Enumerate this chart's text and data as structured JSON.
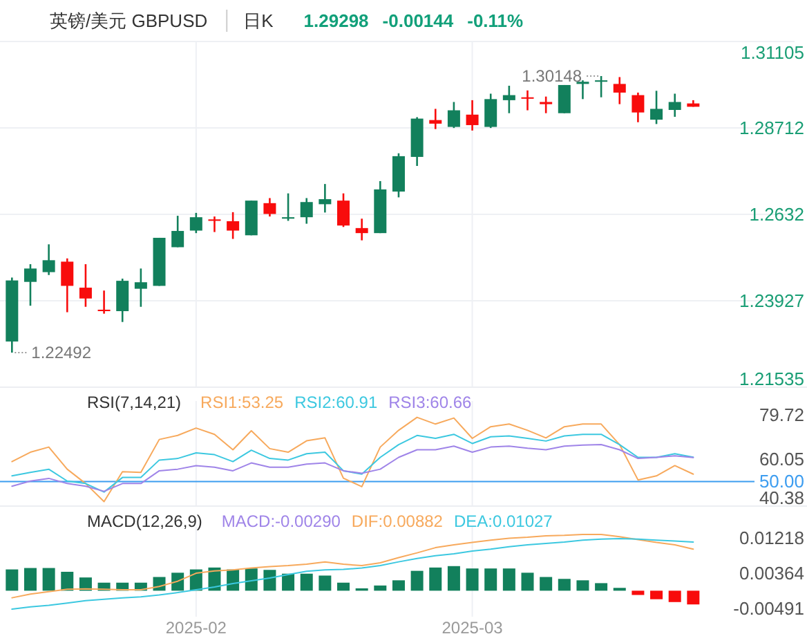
{
  "chart_data": [
    {
      "type": "candlestick",
      "title": "英镑/美元 GBPUSD",
      "subtitle": "日K",
      "annotations": [
        "1.29298",
        "-0.00144",
        "-0.11%",
        "1.22492",
        "1.30148"
      ],
      "categories": [
        null,
        null,
        null,
        null,
        null,
        null,
        null,
        null,
        null,
        null,
        "2025-02",
        null,
        null,
        null,
        null,
        null,
        null,
        null,
        null,
        null,
        null,
        null,
        null,
        null,
        null,
        "2025-03",
        null,
        null,
        null,
        null,
        null,
        null,
        null,
        null,
        null,
        null,
        null,
        null
      ],
      "ohlc": [
        [
          1.228,
          1.2457,
          1.22492,
          1.2449
        ],
        [
          1.2445,
          1.2494,
          1.2379,
          1.2482
        ],
        [
          1.2472,
          1.2549,
          1.2464,
          1.2505
        ],
        [
          1.2501,
          1.251,
          1.2361,
          1.2434
        ],
        [
          1.2429,
          1.2494,
          1.2376,
          1.2399
        ],
        [
          1.2368,
          1.2421,
          1.2357,
          1.2364
        ],
        [
          1.2364,
          1.2454,
          1.2334,
          1.2448
        ],
        [
          1.2426,
          1.2482,
          1.2376,
          1.2444
        ],
        [
          1.2434,
          1.2567,
          1.2434,
          1.2567
        ],
        [
          1.2541,
          1.2628,
          1.2541,
          1.2586
        ],
        [
          1.2587,
          1.2636,
          1.258,
          1.2624
        ],
        [
          1.2618,
          1.2626,
          1.2583,
          1.2614
        ],
        [
          1.2613,
          1.2638,
          1.2564,
          1.2587
        ],
        [
          1.2574,
          1.267,
          1.2574,
          1.267
        ],
        [
          1.2663,
          1.2677,
          1.2626,
          1.2633
        ],
        [
          1.262,
          1.269,
          1.2614,
          1.2624
        ],
        [
          1.2624,
          1.2677,
          1.2606,
          1.2666
        ],
        [
          1.266,
          1.2716,
          1.2637,
          1.2674
        ],
        [
          1.267,
          1.269,
          1.2597,
          1.2601
        ],
        [
          1.2594,
          1.262,
          1.256,
          1.258
        ],
        [
          1.258,
          1.2724,
          1.258,
          1.2701
        ],
        [
          1.2695,
          1.2801,
          1.2679,
          1.2793
        ],
        [
          1.2791,
          1.2901,
          1.2766,
          1.2897
        ],
        [
          1.2893,
          1.2924,
          1.2868,
          1.2883
        ],
        [
          1.2874,
          1.2943,
          1.2871,
          1.292
        ],
        [
          1.2908,
          1.2948,
          1.2864,
          1.2879
        ],
        [
          1.2874,
          1.2966,
          1.2871,
          1.2951
        ],
        [
          1.2948,
          1.2988,
          1.2912,
          1.2962
        ],
        [
          1.2956,
          1.2975,
          1.292,
          1.2952
        ],
        [
          1.2943,
          1.2958,
          1.2912,
          1.2937
        ],
        [
          1.2912,
          1.299,
          1.2912,
          1.299
        ],
        [
          1.2993,
          1.3003,
          1.2951,
          1.2999
        ],
        [
          1.2999,
          1.30148,
          1.2956,
          1.3003
        ],
        [
          1.2993,
          1.3012,
          1.2937,
          1.2969
        ],
        [
          1.2962,
          1.2969,
          1.2887,
          1.2914
        ],
        [
          1.2894,
          1.2974,
          1.2882,
          1.2924
        ],
        [
          1.2921,
          1.2966,
          1.2902,
          1.2943
        ],
        [
          1.2939,
          1.2948,
          1.29298,
          1.29298
        ]
      ],
      "colors": [
        "#12805c",
        "#12805c",
        "#12805c",
        "#f80c0c",
        "#f80c0c",
        "#f80c0c",
        "#12805c",
        "#12805c",
        "#12805c",
        "#12805c",
        "#12805c",
        "#f80c0c",
        "#f80c0c",
        "#12805c",
        "#f80c0c",
        "#12805c",
        "#12805c",
        "#12805c",
        "#f80c0c",
        "#f80c0c",
        "#12805c",
        "#12805c",
        "#12805c",
        "#f80c0c",
        "#12805c",
        "#f80c0c",
        "#12805c",
        "#12805c",
        "#f80c0c",
        "#f80c0c",
        "#12805c",
        "#12805c",
        "#12805c",
        "#f80c0c",
        "#f80c0c",
        "#12805c",
        "#12805c",
        "#f80c0c"
      ],
      "ylim": [
        1.21535,
        1.31105
      ],
      "yticks": [
        1.21535,
        1.23927,
        1.2632,
        1.28712,
        1.31105
      ],
      "grid": true,
      "tick_labels": "y"
    },
    {
      "type": "line",
      "title": "RSI(7,14,21)",
      "legend": "top",
      "grid": "x",
      "tick_labels": "y",
      "categories": [
        null,
        null,
        null,
        null,
        null,
        null,
        null,
        null,
        null,
        null,
        "2025-02",
        null,
        null,
        null,
        null,
        null,
        null,
        null,
        null,
        null,
        null,
        null,
        null,
        null,
        null,
        "2025-03",
        null,
        null,
        null,
        null,
        null,
        null,
        null,
        null,
        null,
        null,
        null,
        null
      ],
      "ylim": [
        39,
        86
      ],
      "yticks": [
        40.38,
        60.05,
        79.72
      ],
      "ref_lines": [
        {
          "axis": "y",
          "value": 50,
          "label": "50.00",
          "color": "#3d9df0"
        }
      ],
      "series": [
        {
          "name": "RSI1:53.25",
          "color": "#f7a95c",
          "values": [
            58.9,
            63.1,
            65.4,
            55.5,
            49.1,
            41.0,
            54.4,
            54.1,
            68.8,
            70.6,
            73.9,
            71.1,
            64.2,
            72.7,
            64.7,
            63.1,
            68.2,
            69.5,
            51.5,
            47.7,
            65.4,
            72.9,
            78.7,
            75.7,
            78.4,
            69.3,
            74.5,
            75.7,
            72.9,
            69.5,
            74.5,
            75.7,
            75.7,
            66.5,
            50.7,
            52.5,
            57.1,
            53.3
          ]
        },
        {
          "name": "RSI2:60.91",
          "color": "#3cc8e0",
          "values": [
            52.5,
            54.1,
            55.5,
            50.2,
            49.1,
            45.3,
            51.8,
            51.8,
            59.6,
            60.3,
            62.8,
            62.0,
            58.9,
            64.0,
            60.3,
            59.6,
            62.4,
            63.1,
            54.8,
            53.3,
            60.8,
            66.5,
            70.6,
            69.3,
            71.1,
            67.0,
            70.0,
            70.4,
            69.3,
            68.1,
            70.4,
            71.1,
            71.1,
            66.5,
            60.8,
            60.8,
            62.4,
            60.9
          ]
        },
        {
          "name": "RSI3:60.66",
          "color": "#9f84e8",
          "values": [
            47.9,
            50.2,
            51.4,
            49.1,
            47.9,
            45.6,
            49.1,
            49.1,
            54.8,
            55.5,
            57.1,
            56.4,
            54.8,
            58.3,
            56.4,
            56.4,
            57.8,
            58.3,
            54.8,
            53.7,
            55.5,
            60.8,
            64.2,
            64.2,
            65.8,
            63.1,
            65.4,
            65.8,
            64.9,
            64.2,
            65.8,
            66.3,
            66.5,
            64.2,
            60.3,
            60.8,
            61.5,
            60.7
          ]
        }
      ]
    },
    {
      "type": "bar",
      "title": "MACD(12,26,9)",
      "legend": "top",
      "grid": "x",
      "categories": [
        null,
        null,
        null,
        null,
        null,
        null,
        null,
        null,
        null,
        null,
        "2025-02",
        null,
        null,
        null,
        null,
        null,
        null,
        null,
        null,
        null,
        null,
        null,
        null,
        null,
        null,
        "2025-03",
        null,
        null,
        null,
        null,
        null,
        null,
        null,
        null,
        null,
        null,
        null,
        null
      ],
      "ylim": [
        -0.0055,
        0.0135
      ],
      "yticks": [
        -0.00491,
        0.00364,
        0.01218
      ],
      "series": [
        {
          "name": "MACD:-0.00290",
          "type": "bar",
          "color": "#9f84e8",
          "colors": [
            "#12805c",
            "#12805c",
            "#12805c",
            "#12805c",
            "#12805c",
            "#12805c",
            "#12805c",
            "#12805c",
            "#12805c",
            "#12805c",
            "#12805c",
            "#12805c",
            "#12805c",
            "#12805c",
            "#12805c",
            "#12805c",
            "#12805c",
            "#12805c",
            "#12805c",
            "#12805c",
            "#12805c",
            "#12805c",
            "#12805c",
            "#12805c",
            "#12805c",
            "#12805c",
            "#12805c",
            "#12805c",
            "#12805c",
            "#12805c",
            "#12805c",
            "#12805c",
            "#12805c",
            "#12805c",
            "#f80c0c",
            "#f80c0c",
            "#f80c0c",
            "#f80c0c"
          ],
          "values": [
            0.0045,
            0.0048,
            0.0048,
            0.004,
            0.0028,
            0.0017,
            0.0017,
            0.0017,
            0.0029,
            0.0038,
            0.0045,
            0.0049,
            0.0045,
            0.0047,
            0.0044,
            0.0036,
            0.0036,
            0.0032,
            0.0017,
            0.0005,
            0.0011,
            0.0022,
            0.0042,
            0.0049,
            0.0052,
            0.0047,
            0.0047,
            0.0047,
            0.0038,
            0.0029,
            0.0025,
            0.0022,
            0.0016,
            0.0006,
            -0.0009,
            -0.0018,
            -0.0024,
            -0.0029
          ]
        },
        {
          "name": "DIF:0.00882",
          "type": "line",
          "color": "#f7a95c",
          "values": [
            -0.0015,
            -0.0007,
            -0.0002,
            0.0003,
            0.0004,
            0.0003,
            0.0002,
            0.0002,
            0.0009,
            0.002,
            0.0037,
            0.0042,
            0.0044,
            0.0048,
            0.0051,
            0.0053,
            0.0056,
            0.0061,
            0.0056,
            0.0053,
            0.0059,
            0.007,
            0.008,
            0.0091,
            0.0097,
            0.0102,
            0.0107,
            0.0111,
            0.0113,
            0.0116,
            0.0117,
            0.0119,
            0.0119,
            0.0114,
            0.0108,
            0.0102,
            0.0097,
            0.0088
          ]
        },
        {
          "name": "DEA:0.01027",
          "type": "line",
          "color": "#3cc8e0",
          "values": [
            -0.0039,
            -0.0034,
            -0.0031,
            -0.0026,
            -0.0021,
            -0.0018,
            -0.0015,
            -0.0013,
            -0.0009,
            -0.0004,
            0.0002,
            0.0008,
            0.0015,
            0.0021,
            0.0027,
            0.0034,
            0.0041,
            0.0044,
            0.0045,
            0.0048,
            0.0053,
            0.0061,
            0.0068,
            0.0074,
            0.0078,
            0.0084,
            0.0088,
            0.0093,
            0.0097,
            0.01,
            0.0103,
            0.0107,
            0.0109,
            0.011,
            0.0109,
            0.0107,
            0.0105,
            0.0103
          ]
        }
      ]
    }
  ]
}
